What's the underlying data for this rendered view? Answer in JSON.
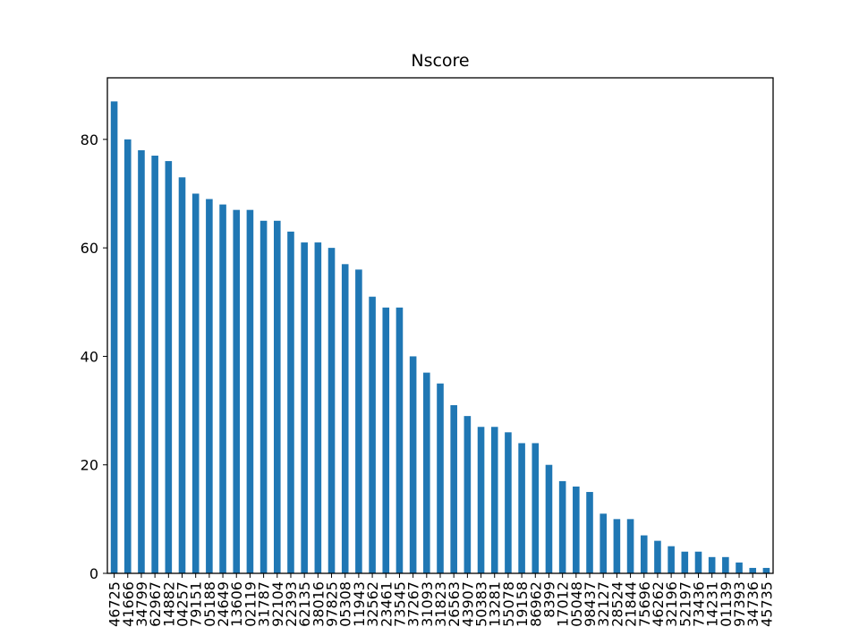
{
  "chart_data": {
    "type": "bar",
    "title": "Nscore",
    "xlabel": "",
    "ylabel": "",
    "ylim": [
      0,
      91.35
    ],
    "yticks": [
      0,
      20,
      40,
      60,
      80
    ],
    "color": "#1f77b4",
    "grid": false,
    "categories": [
      "46725",
      "41666",
      "34799",
      "62967",
      "14882",
      "04257",
      "79151",
      "05188",
      "24649",
      "13606",
      "02119",
      "31787",
      "92104",
      "22393",
      "62135",
      "38016",
      "97825",
      "05308",
      "11943",
      "32562",
      "23461",
      "73545",
      "37267",
      "31093",
      "31823",
      "26563",
      "43907",
      "50383",
      "13281",
      "55078",
      "19158",
      "86962",
      "8399",
      "17012",
      "05048",
      "98437",
      "32127",
      "28524",
      "21844",
      "75696",
      "46262",
      "32196",
      "52197",
      "73436",
      "14231",
      "01139",
      "97393",
      "34736",
      "45735"
    ],
    "values": [
      87,
      80,
      78,
      77,
      76,
      73,
      70,
      69,
      68,
      67,
      67,
      65,
      65,
      63,
      61,
      61,
      60,
      57,
      56,
      51,
      49,
      49,
      40,
      37,
      35,
      31,
      29,
      27,
      27,
      26,
      24,
      24,
      20,
      17,
      16,
      15,
      11,
      10,
      10,
      7,
      6,
      5,
      4,
      4,
      3,
      3,
      2,
      1,
      1
    ]
  }
}
